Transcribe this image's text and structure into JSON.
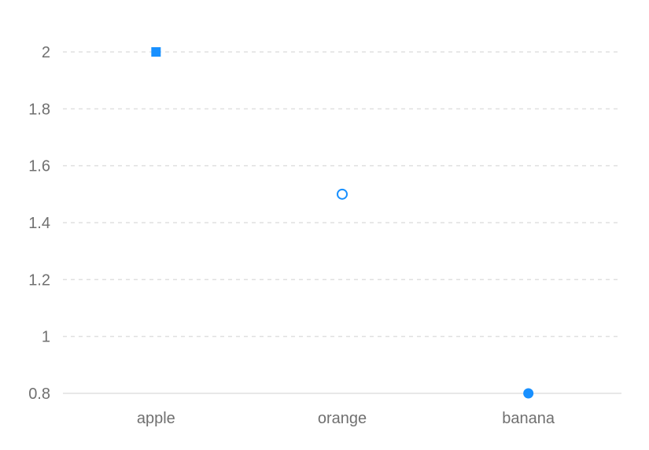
{
  "chart_data": {
    "type": "scatter",
    "categories": [
      "apple",
      "orange",
      "banana"
    ],
    "values": [
      2,
      1.5,
      0.8
    ],
    "markers": [
      "square",
      "hollow-circle",
      "circle"
    ],
    "ylim": [
      0.8,
      2
    ],
    "yticks": [
      "0.8",
      "1",
      "1.2",
      "1.4",
      "1.6",
      "1.8",
      "2"
    ],
    "grid": true,
    "color": "#1890ff"
  }
}
